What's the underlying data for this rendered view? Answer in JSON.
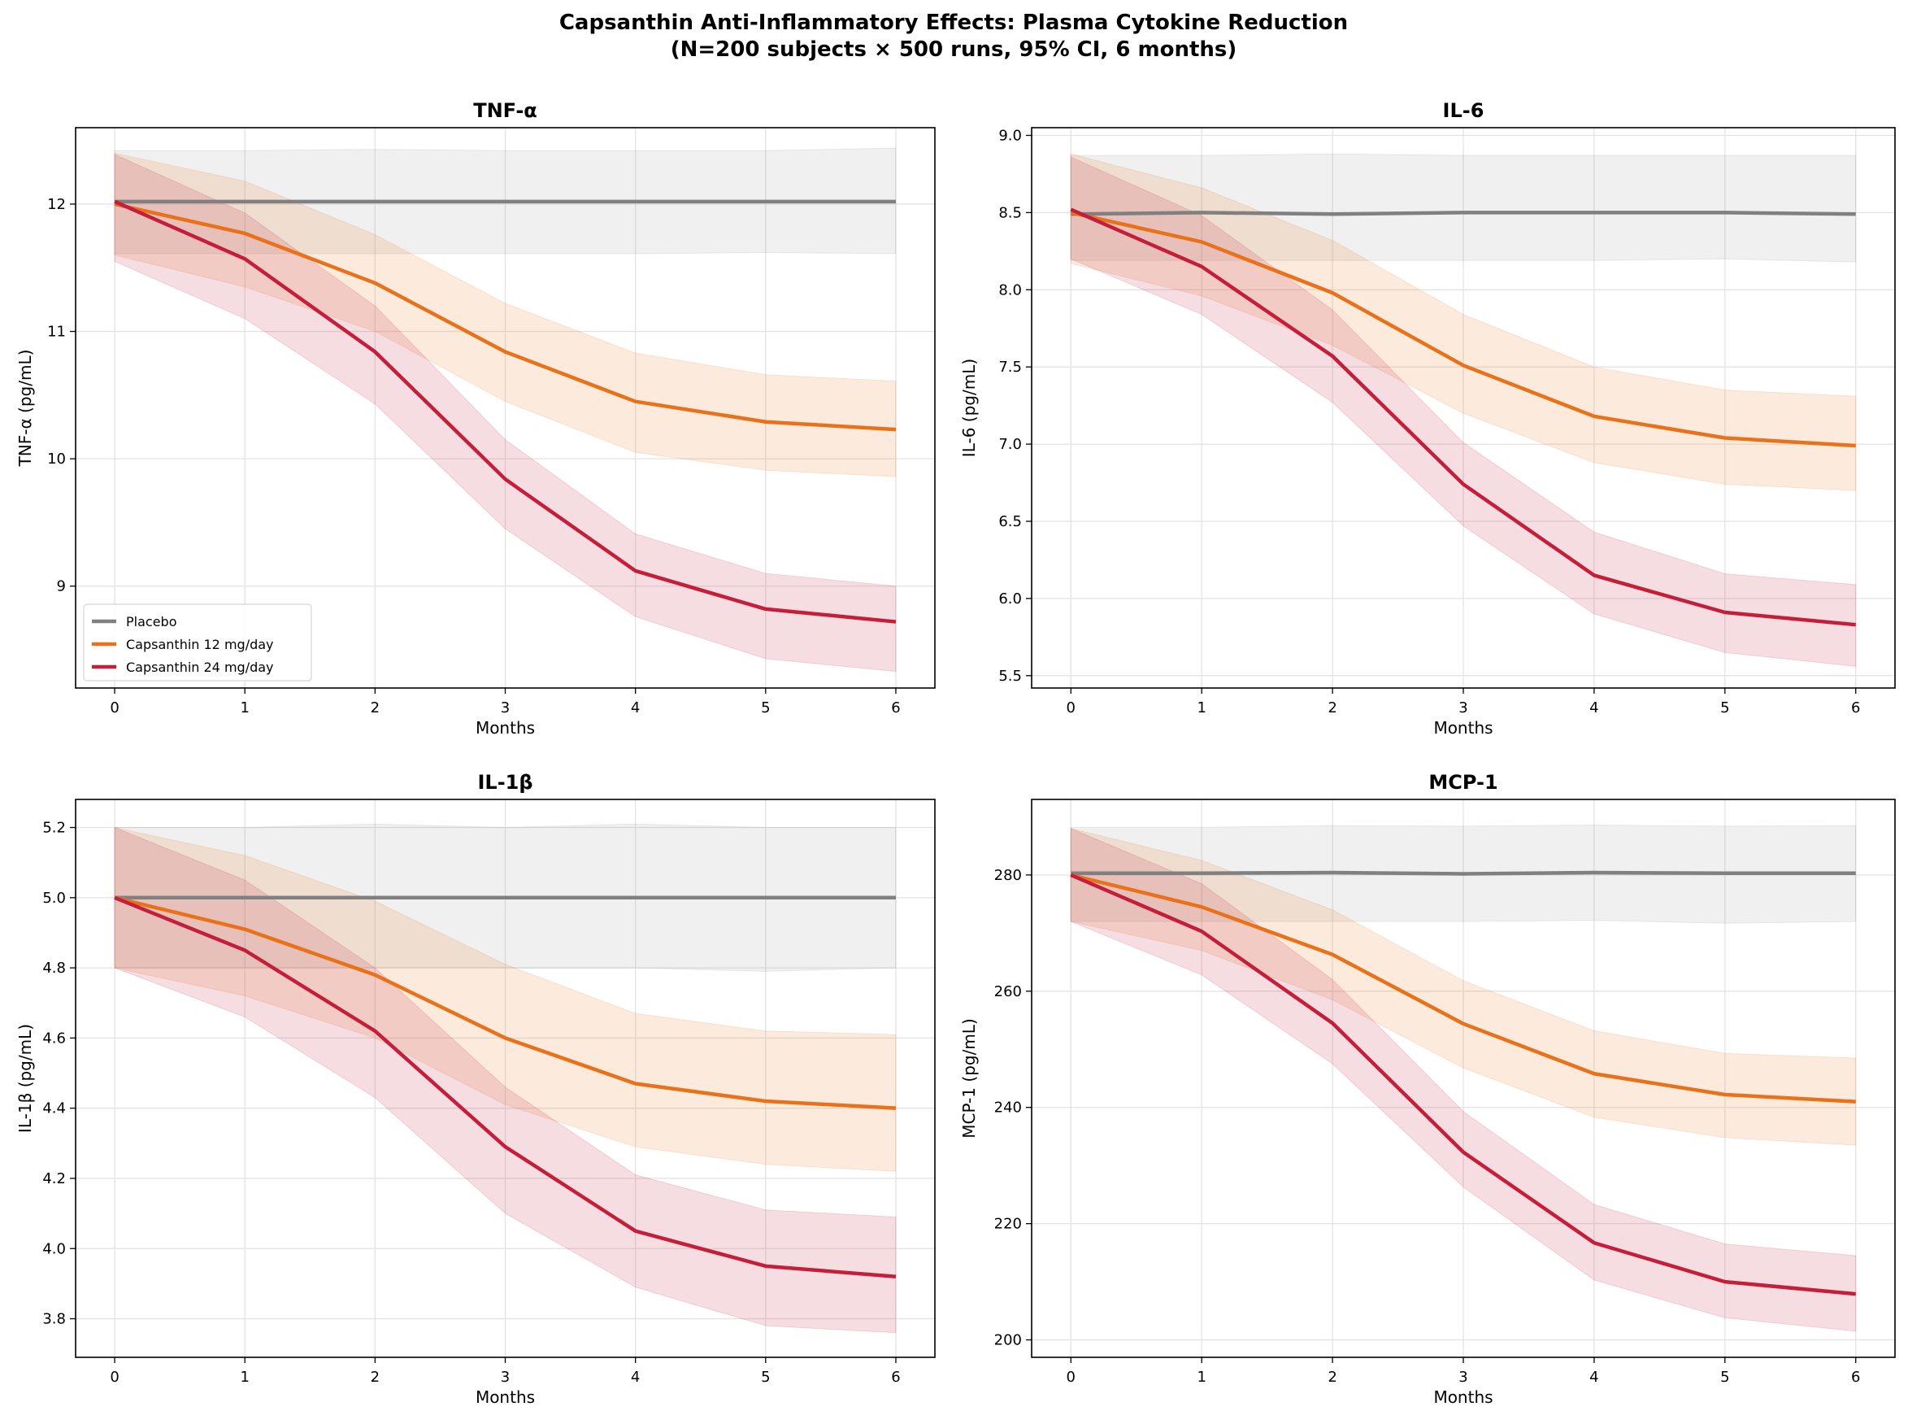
{
  "title_line1": "Capsanthin Anti-Inflammatory Effects: Plasma Cytokine Reduction",
  "title_line2": "(N=200 subjects × 500 runs, 95% CI, 6 months)",
  "colors": {
    "Placebo": "#808080",
    "Capsanthin 12 mg/day": "#e8711a",
    "Capsanthin 24 mg/day": "#c41e3a"
  },
  "chart_data": [
    {
      "type": "line",
      "title": "TNF-α",
      "xlabel": "Months",
      "ylabel": "TNF-α (pg/mL)",
      "x": [
        0,
        1,
        2,
        3,
        4,
        5,
        6
      ],
      "xlim": [
        -0.3,
        6.3
      ],
      "ylim": [
        8.2,
        12.6
      ],
      "yticks": [
        9,
        10,
        11,
        12
      ],
      "grid": true,
      "legend": "lower-left",
      "series": [
        {
          "name": "Placebo",
          "values": [
            12.02,
            12.02,
            12.02,
            12.02,
            12.02,
            12.02,
            12.02
          ],
          "ci_low": [
            11.61,
            11.61,
            11.61,
            11.61,
            11.61,
            11.62,
            11.61
          ],
          "ci_high": [
            12.42,
            12.42,
            12.43,
            12.42,
            12.42,
            12.42,
            12.44
          ]
        },
        {
          "name": "Capsanthin 12 mg/day",
          "values": [
            12.0,
            11.77,
            11.38,
            10.84,
            10.45,
            10.29,
            10.23
          ],
          "ci_low": [
            11.6,
            11.35,
            11.0,
            10.45,
            10.05,
            9.91,
            9.86
          ],
          "ci_high": [
            12.4,
            12.18,
            11.76,
            11.22,
            10.83,
            10.66,
            10.61
          ]
        },
        {
          "name": "Capsanthin 24 mg/day",
          "values": [
            12.02,
            11.57,
            10.84,
            9.84,
            9.12,
            8.82,
            8.72
          ],
          "ci_low": [
            11.55,
            11.1,
            10.43,
            9.45,
            8.76,
            8.43,
            8.33
          ],
          "ci_high": [
            12.39,
            11.93,
            11.2,
            10.15,
            9.41,
            9.1,
            9.0
          ]
        }
      ]
    },
    {
      "type": "line",
      "title": "IL-6",
      "xlabel": "Months",
      "ylabel": "IL-6 (pg/mL)",
      "x": [
        0,
        1,
        2,
        3,
        4,
        5,
        6
      ],
      "xlim": [
        -0.3,
        6.3
      ],
      "ylim": [
        5.42,
        9.05
      ],
      "yticks": [
        5.5,
        6.0,
        6.5,
        7.0,
        7.5,
        8.0,
        8.5,
        9.0
      ],
      "grid": true,
      "series": [
        {
          "name": "Placebo",
          "values": [
            8.49,
            8.5,
            8.49,
            8.5,
            8.5,
            8.5,
            8.49
          ],
          "ci_low": [
            8.19,
            8.19,
            8.19,
            8.19,
            8.19,
            8.2,
            8.18
          ],
          "ci_high": [
            8.87,
            8.87,
            8.88,
            8.87,
            8.87,
            8.87,
            8.87
          ]
        },
        {
          "name": "Capsanthin 12 mg/day",
          "values": [
            8.5,
            8.31,
            7.98,
            7.51,
            7.18,
            7.04,
            6.99
          ],
          "ci_low": [
            8.17,
            7.96,
            7.64,
            7.2,
            6.88,
            6.74,
            6.7
          ],
          "ci_high": [
            8.88,
            8.66,
            8.32,
            7.84,
            7.5,
            7.35,
            7.31
          ]
        },
        {
          "name": "Capsanthin 24 mg/day",
          "values": [
            8.52,
            8.15,
            7.57,
            6.74,
            6.15,
            5.91,
            5.83
          ],
          "ci_low": [
            8.2,
            7.84,
            7.27,
            6.47,
            5.9,
            5.65,
            5.56
          ],
          "ci_high": [
            8.86,
            8.48,
            7.87,
            7.01,
            6.43,
            6.16,
            6.09
          ]
        }
      ]
    },
    {
      "type": "line",
      "title": "IL-1β",
      "xlabel": "Months",
      "ylabel": "IL-1β (pg/mL)",
      "x": [
        0,
        1,
        2,
        3,
        4,
        5,
        6
      ],
      "xlim": [
        -0.3,
        6.3
      ],
      "ylim": [
        3.69,
        5.28
      ],
      "yticks": [
        3.8,
        4.0,
        4.2,
        4.4,
        4.6,
        4.8,
        5.0,
        5.2
      ],
      "grid": true,
      "series": [
        {
          "name": "Placebo",
          "values": [
            5.0,
            5.0,
            5.0,
            5.0,
            5.0,
            5.0,
            5.0
          ],
          "ci_low": [
            4.8,
            4.8,
            4.8,
            4.8,
            4.8,
            4.79,
            4.8
          ],
          "ci_high": [
            5.2,
            5.2,
            5.21,
            5.2,
            5.21,
            5.2,
            5.2
          ]
        },
        {
          "name": "Capsanthin 12 mg/day",
          "values": [
            5.0,
            4.91,
            4.78,
            4.6,
            4.47,
            4.42,
            4.4
          ],
          "ci_low": [
            4.8,
            4.72,
            4.6,
            4.41,
            4.29,
            4.24,
            4.22
          ],
          "ci_high": [
            5.2,
            5.12,
            4.99,
            4.81,
            4.67,
            4.62,
            4.61
          ]
        },
        {
          "name": "Capsanthin 24 mg/day",
          "values": [
            5.0,
            4.85,
            4.62,
            4.29,
            4.05,
            3.95,
            3.92
          ],
          "ci_low": [
            4.8,
            4.66,
            4.43,
            4.1,
            3.89,
            3.78,
            3.76
          ],
          "ci_high": [
            5.2,
            5.05,
            4.8,
            4.46,
            4.21,
            4.11,
            4.09
          ]
        }
      ]
    },
    {
      "type": "line",
      "title": "MCP-1",
      "xlabel": "Months",
      "ylabel": "MCP-1 (pg/mL)",
      "x": [
        0,
        1,
        2,
        3,
        4,
        5,
        6
      ],
      "xlim": [
        -0.3,
        6.3
      ],
      "ylim": [
        197,
        293
      ],
      "yticks": [
        200,
        220,
        240,
        260,
        280
      ],
      "grid": true,
      "series": [
        {
          "name": "Placebo",
          "values": [
            280.3,
            280.3,
            280.4,
            280.2,
            280.4,
            280.3,
            280.3
          ],
          "ci_low": [
            272,
            272,
            272,
            272,
            272.2,
            271.7,
            272
          ],
          "ci_high": [
            288.2,
            288.2,
            288.5,
            288.4,
            288.6,
            288.4,
            288.5
          ]
        },
        {
          "name": "Capsanthin 12 mg/day",
          "values": [
            280,
            274.5,
            266.3,
            254.4,
            245.8,
            242.2,
            241.0
          ],
          "ci_low": [
            272,
            267,
            258.5,
            246.8,
            238.3,
            234.8,
            233.5
          ],
          "ci_high": [
            288,
            282.5,
            274,
            261.8,
            253.2,
            249.3,
            248.5
          ]
        },
        {
          "name": "Capsanthin 24 mg/day",
          "values": [
            280,
            270.3,
            254.5,
            232.3,
            216.7,
            210,
            207.9
          ],
          "ci_low": [
            272,
            262.8,
            247.5,
            226.3,
            210.3,
            203.8,
            201.5
          ],
          "ci_high": [
            288,
            278.5,
            262,
            239.3,
            223.3,
            216.5,
            214.5
          ]
        }
      ]
    }
  ]
}
